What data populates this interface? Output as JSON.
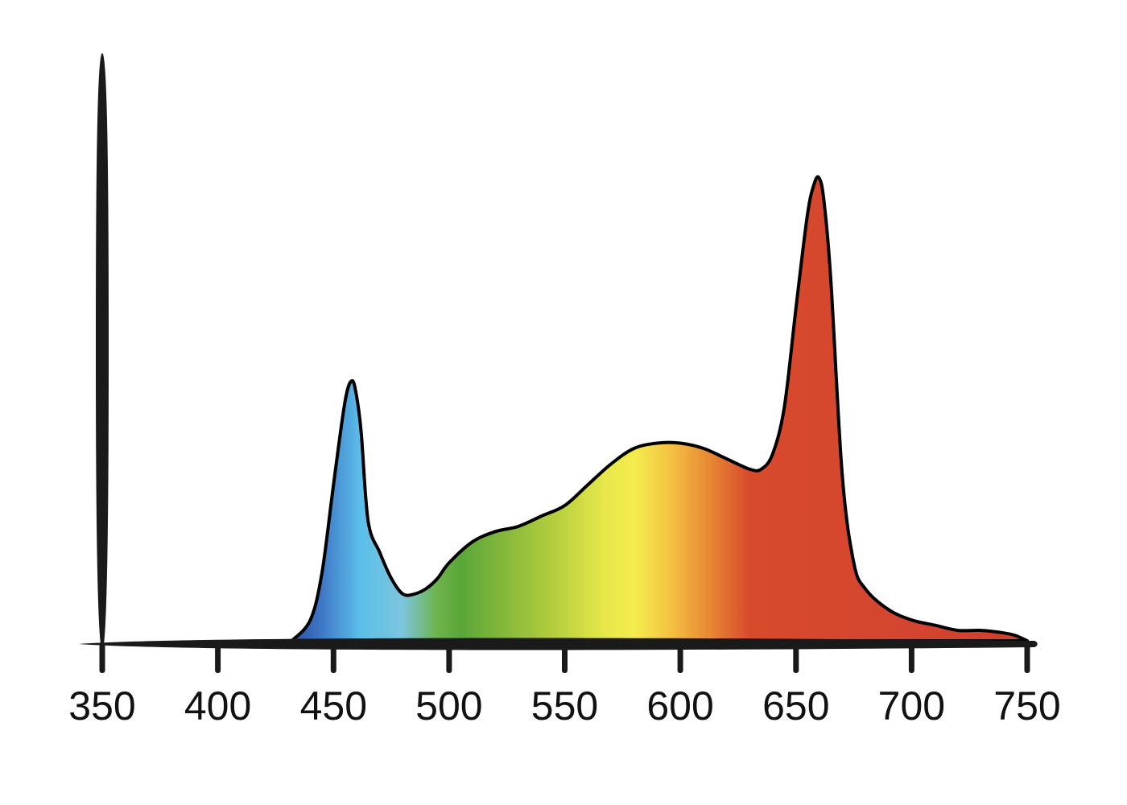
{
  "chart_data": {
    "type": "area",
    "title": "",
    "xlabel": "",
    "ylabel": "",
    "xlim": [
      350,
      750
    ],
    "ylim": [
      0,
      1
    ],
    "grid": false,
    "x_ticks": [
      "350",
      "400",
      "450",
      "500",
      "550",
      "600",
      "650",
      "700",
      "750"
    ],
    "fill": "visible-spectrum gradient by wavelength",
    "series": [
      {
        "x": [
          432,
          440,
          445,
          450,
          455,
          458,
          460,
          462,
          465,
          470,
          475,
          480,
          485,
          490,
          495,
          500,
          510,
          520,
          530,
          540,
          550,
          560,
          570,
          580,
          590,
          600,
          610,
          620,
          630,
          635,
          640,
          645,
          650,
          655,
          658,
          660,
          662,
          665,
          670,
          675,
          680,
          690,
          700,
          710,
          720,
          730,
          740,
          745,
          750
        ],
        "y": [
          0.0,
          0.04,
          0.13,
          0.3,
          0.46,
          0.5,
          0.47,
          0.4,
          0.23,
          0.17,
          0.12,
          0.09,
          0.09,
          0.1,
          0.12,
          0.15,
          0.19,
          0.21,
          0.22,
          0.24,
          0.26,
          0.3,
          0.34,
          0.37,
          0.38,
          0.38,
          0.37,
          0.35,
          0.33,
          0.33,
          0.36,
          0.45,
          0.64,
          0.82,
          0.88,
          0.89,
          0.85,
          0.7,
          0.32,
          0.15,
          0.1,
          0.06,
          0.04,
          0.03,
          0.02,
          0.02,
          0.015,
          0.01,
          0.0
        ]
      }
    ]
  },
  "colors": {
    "axis": "#1a1a1a",
    "outline": "#000000",
    "spectrum_stops": [
      {
        "wl": 432,
        "color": "#2e4fa3"
      },
      {
        "wl": 445,
        "color": "#3f78c6"
      },
      {
        "wl": 462,
        "color": "#5cc0ea"
      },
      {
        "wl": 480,
        "color": "#7cc4dc"
      },
      {
        "wl": 495,
        "color": "#6db44a"
      },
      {
        "wl": 505,
        "color": "#5aa63a"
      },
      {
        "wl": 540,
        "color": "#a9c83c"
      },
      {
        "wl": 568,
        "color": "#e8e84a"
      },
      {
        "wl": 580,
        "color": "#f4ec4e"
      },
      {
        "wl": 595,
        "color": "#f5c443"
      },
      {
        "wl": 612,
        "color": "#e88a34"
      },
      {
        "wl": 630,
        "color": "#d84a2c"
      },
      {
        "wl": 700,
        "color": "#d44530"
      },
      {
        "wl": 750,
        "color": "#cf3f2c"
      }
    ]
  }
}
